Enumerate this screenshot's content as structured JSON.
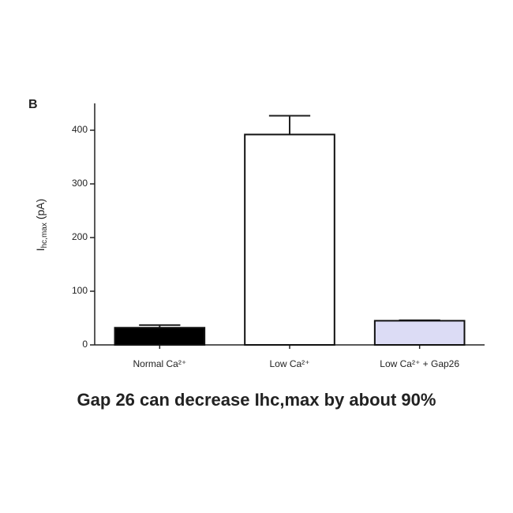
{
  "chart_data": {
    "type": "bar",
    "panel_label": "B",
    "ylabel": {
      "text": "I",
      "subscript": "hc,max",
      "unit": "(pA)"
    },
    "categories": [
      "Normal Ca²⁺",
      "Low Ca²⁺",
      "Low Ca²⁺ + Gap26"
    ],
    "values": [
      32,
      392,
      45
    ],
    "errors": [
      5,
      35,
      1
    ],
    "colors": [
      "#000000",
      "#ffffff",
      "#dcdcf5"
    ],
    "ylim": [
      0,
      450
    ],
    "yticks": [
      0,
      100,
      200,
      300,
      400
    ],
    "caption": "Gap 26 can decrease Ihc,max by about 90%"
  }
}
